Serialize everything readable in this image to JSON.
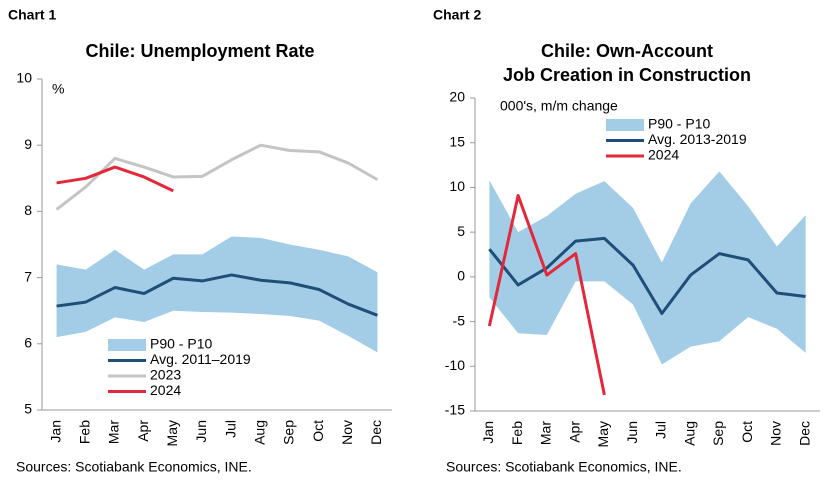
{
  "chart_data": [
    {
      "type": "line",
      "label": "Chart 1",
      "title": [
        "Chile: Unemployment Rate"
      ],
      "unit_label": "%",
      "source": "Sources: Scotiabank Economics, INE.",
      "categories": [
        "Jan",
        "Feb",
        "Mar",
        "Apr",
        "May",
        "Jun",
        "Jul",
        "Aug",
        "Sep",
        "Oct",
        "Nov",
        "Dec"
      ],
      "ylim": [
        5,
        10
      ],
      "yticks": [
        5,
        6,
        7,
        8,
        9,
        10
      ],
      "grid": false,
      "series": [
        {
          "name": "P90 - P10",
          "kind": "band",
          "color": "#a3cde7",
          "upper": [
            7.2,
            7.12,
            7.42,
            7.12,
            7.35,
            7.35,
            7.62,
            7.6,
            7.5,
            7.42,
            7.32,
            7.08
          ],
          "lower": [
            6.1,
            6.18,
            6.4,
            6.33,
            6.5,
            6.48,
            6.47,
            6.45,
            6.42,
            6.35,
            6.12,
            5.87
          ]
        },
        {
          "name": "Avg. 2011–2019",
          "color": "#1f4e79",
          "values": [
            6.57,
            6.63,
            6.85,
            6.76,
            6.99,
            6.95,
            7.04,
            6.96,
            6.92,
            6.82,
            6.6,
            6.43
          ]
        },
        {
          "name": "2023",
          "color": "#c4c4c4",
          "values": [
            8.03,
            8.37,
            8.8,
            8.67,
            8.52,
            8.53,
            8.78,
            9.0,
            8.92,
            8.9,
            8.73,
            8.48
          ]
        },
        {
          "name": "2024",
          "color": "#e2283a",
          "values": [
            8.43,
            8.5,
            8.67,
            8.52,
            8.31,
            null,
            null,
            null,
            null,
            null,
            null,
            null
          ]
        }
      ]
    },
    {
      "type": "line",
      "label": "Chart 2",
      "title": [
        "Chile: Own-Account",
        "Job Creation in Construction"
      ],
      "unit_label": "000's, m/m change",
      "source": "Sources: Scotiabank Economics, INE.",
      "categories": [
        "Jan",
        "Feb",
        "Mar",
        "Apr",
        "May",
        "Jun",
        "Jul",
        "Aug",
        "Sep",
        "Oct",
        "Nov",
        "Dec"
      ],
      "ylim": [
        -15,
        20
      ],
      "yticks": [
        -15,
        -10,
        -5,
        0,
        5,
        10,
        15,
        20
      ],
      "grid": false,
      "series": [
        {
          "name": "P90 - P10",
          "kind": "band",
          "color": "#a3cde7",
          "upper": [
            10.8,
            5,
            6.8,
            9.3,
            10.7,
            7.7,
            1.6,
            8.2,
            11.8,
            7.9,
            3.4,
            6.9
          ],
          "lower": [
            -2.3,
            -6.3,
            -6.5,
            -0.5,
            -0.5,
            -3.1,
            -9.8,
            -7.8,
            -7.2,
            -4.5,
            -5.8,
            -8.5
          ]
        },
        {
          "name": "Avg. 2013-2019",
          "color": "#1f4e79",
          "values": [
            3.1,
            -0.9,
            1.0,
            4.0,
            4.3,
            1.3,
            -4.1,
            0.2,
            2.6,
            1.9,
            -1.8,
            -2.2
          ]
        },
        {
          "name": "2024",
          "color": "#e2283a",
          "values": [
            -5.5,
            9.1,
            0.2,
            2.6,
            -13.2,
            null,
            null,
            null,
            null,
            null,
            null,
            null
          ]
        }
      ]
    }
  ]
}
